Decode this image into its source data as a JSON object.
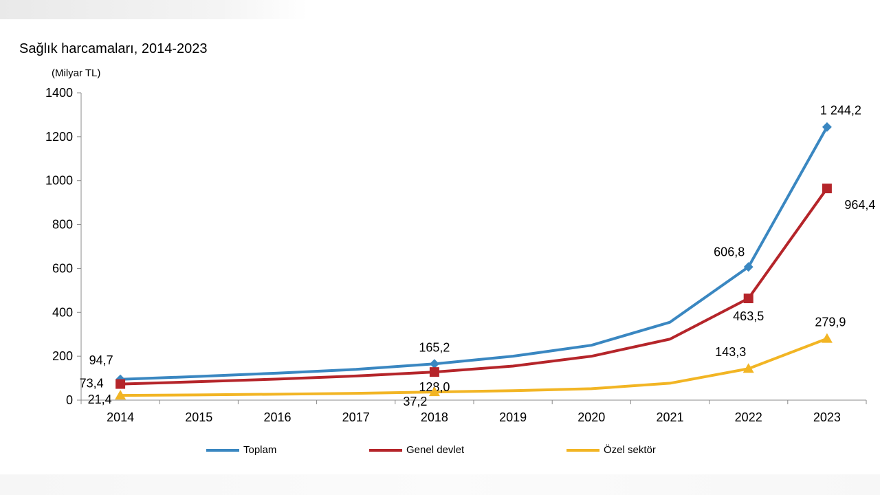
{
  "chart_data": {
    "type": "line",
    "title": "Sağlık harcamaları, 2014-2023",
    "ylabel": "(Milyar TL)",
    "xlabel": "",
    "x": [
      "2014",
      "2015",
      "2016",
      "2017",
      "2018",
      "2019",
      "2020",
      "2021",
      "2022",
      "2023"
    ],
    "ylim": [
      0,
      1400
    ],
    "yticks": [
      0,
      200,
      400,
      600,
      800,
      1000,
      1200,
      1400
    ],
    "legend_position": "bottom",
    "series": [
      {
        "name": "Toplam",
        "color": "#3a87c1",
        "marker": "diamond",
        "values": [
          94.7,
          108,
          123,
          140,
          165.2,
          200,
          250,
          355,
          606.8,
          1244.2
        ],
        "labels": [
          {
            "index": 0,
            "text": "94,7"
          },
          {
            "index": 4,
            "text": "165,2"
          },
          {
            "index": 8,
            "text": "606,8"
          },
          {
            "index": 9,
            "text": "1 244,2"
          }
        ]
      },
      {
        "name": "Genel devlet",
        "color": "#b5252a",
        "marker": "square",
        "values": [
          73.4,
          84,
          96,
          110,
          128.0,
          155,
          200,
          278,
          463.5,
          964.4
        ],
        "labels": [
          {
            "index": 0,
            "text": "73,4"
          },
          {
            "index": 4,
            "text": "128,0"
          },
          {
            "index": 8,
            "text": "463,5"
          },
          {
            "index": 9,
            "text": "964,4"
          }
        ]
      },
      {
        "name": "Özel sektör",
        "color": "#f2b524",
        "marker": "triangle",
        "values": [
          21.4,
          24,
          27,
          31,
          37.2,
          43,
          52,
          77,
          143.3,
          279.9
        ],
        "labels": [
          {
            "index": 0,
            "text": "21,4"
          },
          {
            "index": 4,
            "text": "37,2"
          },
          {
            "index": 8,
            "text": "143,3"
          },
          {
            "index": 9,
            "text": "279,9"
          }
        ]
      }
    ]
  }
}
